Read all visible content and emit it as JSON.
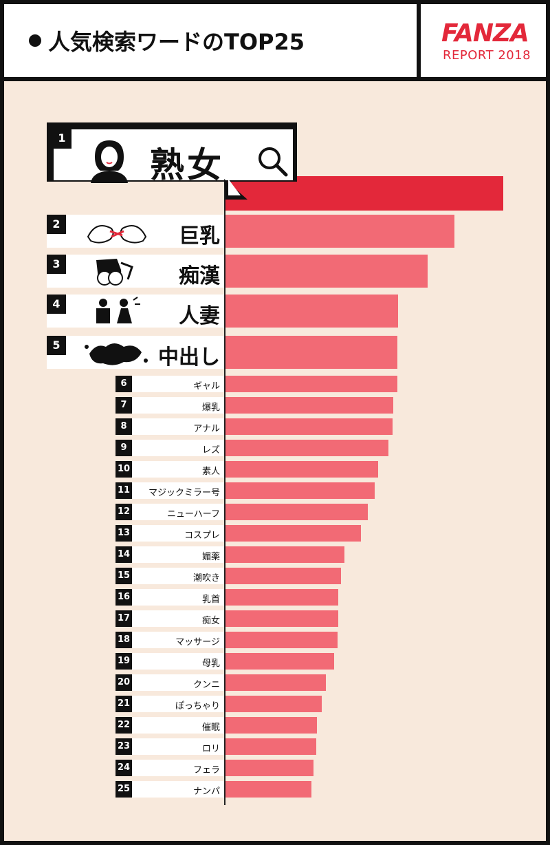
{
  "header": {
    "title": "人気検索ワードのTOP25",
    "brand": "FANZA",
    "report": "REPORT 2018",
    "brand_color": "#e3283a"
  },
  "chart_data": {
    "type": "bar",
    "orientation": "horizontal",
    "title": "人気検索ワードのTOP25",
    "ranks": [
      1,
      2,
      3,
      4,
      5,
      6,
      7,
      8,
      9,
      10,
      11,
      12,
      13,
      14,
      15,
      16,
      17,
      18,
      19,
      20,
      21,
      22,
      23,
      24,
      25
    ],
    "categories": [
      "熟女",
      "巨乳",
      "痴漢",
      "人妻",
      "中出し",
      "ギャル",
      "爆乳",
      "アナル",
      "レズ",
      "素人",
      "マジックミラー号",
      "ニューハーフ",
      "コスプレ",
      "媚薬",
      "潮吹き",
      "乳首",
      "痴女",
      "マッサージ",
      "母乳",
      "クンニ",
      "ぽっちゃり",
      "催眠",
      "ロリ",
      "フェラ",
      "ナンパ"
    ],
    "values": [
      100,
      82.5,
      72.8,
      62.1,
      61.9,
      61.9,
      60.4,
      60.2,
      58.7,
      54.9,
      53.6,
      51.3,
      48.7,
      42.9,
      41.5,
      40.7,
      40.7,
      40.4,
      39.2,
      36.2,
      34.6,
      32.8,
      32.6,
      31.8,
      30.9
    ],
    "xlim": [
      0,
      100
    ],
    "colors": {
      "top": "#e3283a",
      "rest": "#f26a75"
    },
    "icons": [
      "woman-avatar-icon",
      "breasts-icon",
      "groping-icon",
      "couple-icon",
      "splash-icon"
    ]
  }
}
